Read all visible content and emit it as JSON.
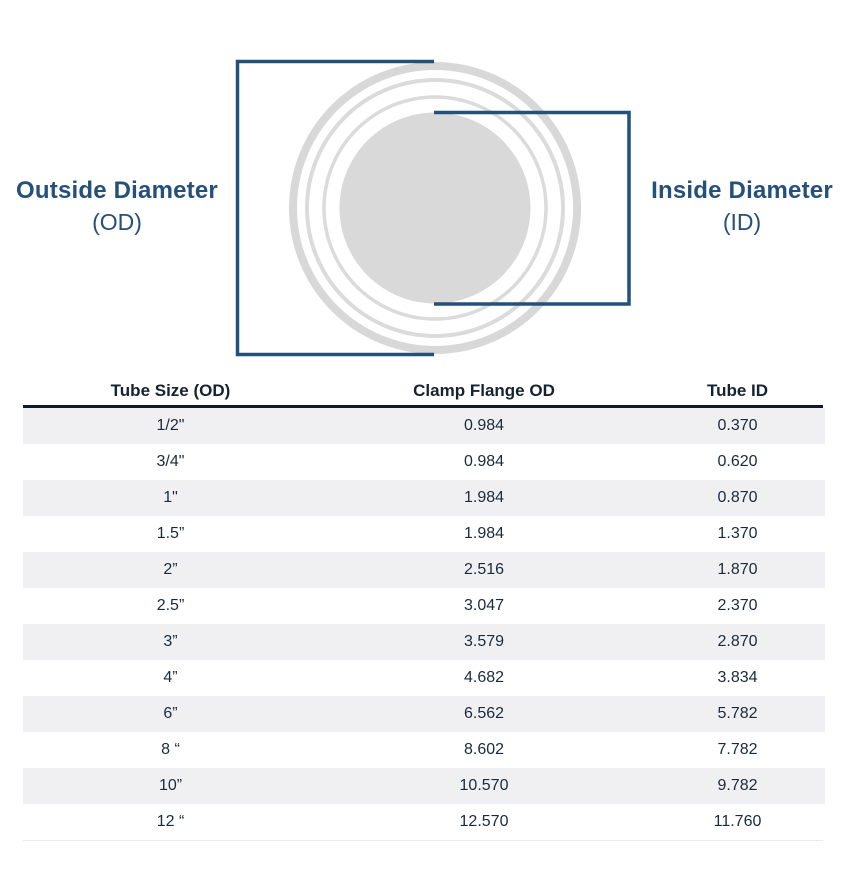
{
  "diagram": {
    "od_label": {
      "title": "Outside Diameter",
      "subtitle": "(OD)"
    },
    "id_label": {
      "title": "Inside Diameter",
      "subtitle": "(ID)"
    },
    "colors": {
      "bracket_navy": "#24507B",
      "flange_ring_gray": "#D8D8D8",
      "tube_bore_gray": "#D9D9D9"
    }
  },
  "table": {
    "columns": [
      "Tube Size (OD)",
      "Clamp Flange OD",
      "Tube ID"
    ],
    "rows": [
      [
        "1/2\"",
        "0.984",
        "0.370"
      ],
      [
        "3/4\"",
        "0.984",
        "0.620"
      ],
      [
        "1\"",
        "1.984",
        "0.870"
      ],
      [
        "1.5”",
        "1.984",
        "1.370"
      ],
      [
        "2”",
        "2.516",
        "1.870"
      ],
      [
        "2.5”",
        "3.047",
        "2.370"
      ],
      [
        "3”",
        "3.579",
        "2.870"
      ],
      [
        "4”",
        "4.682",
        "3.834"
      ],
      [
        "6”",
        "6.562",
        "5.782"
      ],
      [
        "8 “",
        "8.602",
        "7.782"
      ],
      [
        "10”",
        "10.570",
        "9.782"
      ],
      [
        "12 “",
        "12.570",
        "11.760"
      ]
    ],
    "stripe_color": "#F0F0F3",
    "header_rule_color": "#0F1B29"
  }
}
